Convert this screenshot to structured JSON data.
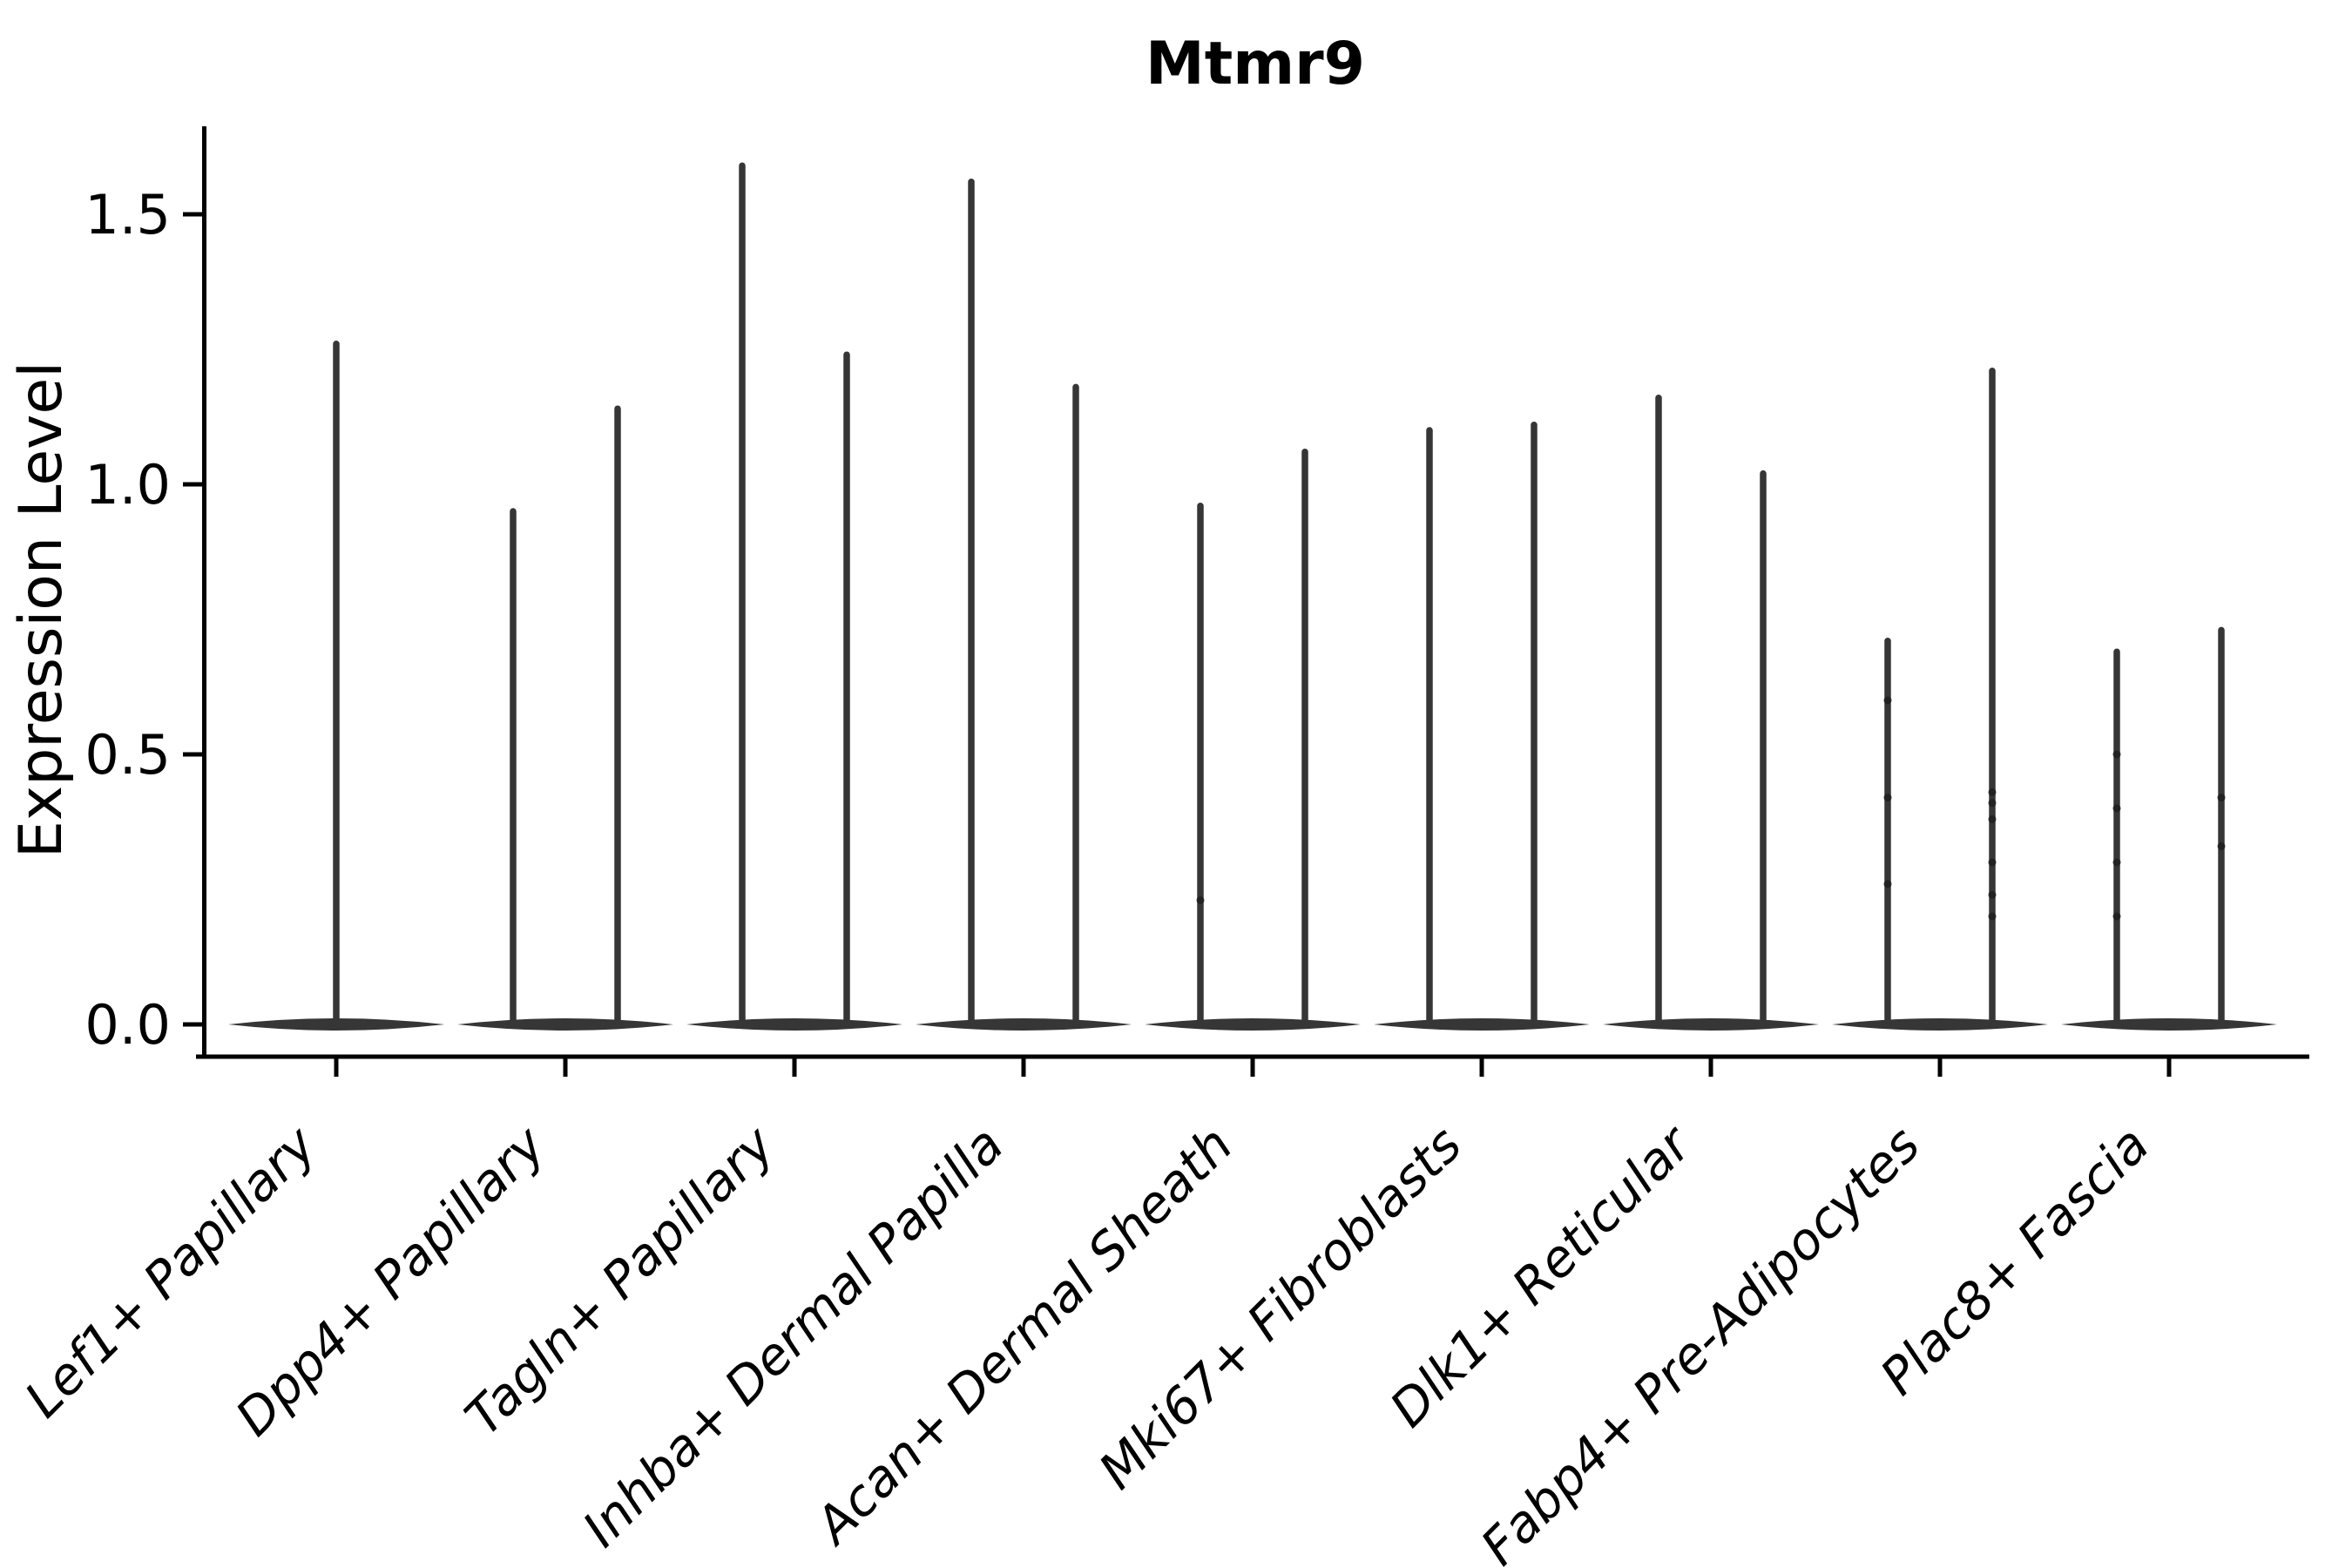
{
  "title": "Mtmr9",
  "axes": {
    "ylabel": "Expression Level",
    "yticklabels": [
      "0.0",
      "0.5",
      "1.0",
      "1.5"
    ]
  },
  "chart_data": {
    "type": "violin",
    "title": "Mtmr9",
    "xlabel": "",
    "ylabel": "Expression Level",
    "ylim": [
      -0.06,
      1.66
    ],
    "yticks": [
      0.0,
      0.5,
      1.0,
      1.5
    ],
    "yticklabels": [
      "0.0",
      "0.5",
      "1.0",
      "1.5"
    ],
    "grid": false,
    "legend": "none",
    "violin_color": "#363636",
    "categories": [
      "Lef1+ Papillary",
      "Dpp4+ Papillary",
      "Tagln+ Papillary",
      "Inhba+ Dermal Papilla",
      "Acan+ Dermal Sheath",
      "Mki67+ Fibroblasts",
      "Dlk1+ Reticular",
      "Fabp4+ Pre-Adipocytes",
      "Plac8+ Fascia"
    ],
    "description": "Each category shows a flat violin body at expression 0 with thin density spikes reaching the maximum expression values listed below.",
    "violins": [
      {
        "category": "Lef1+ Papillary",
        "body_center": 0.0,
        "spikes": [
          {
            "side": "center",
            "max": 1.26,
            "points": []
          }
        ]
      },
      {
        "category": "Dpp4+ Papillary",
        "body_center": 0.0,
        "spikes": [
          {
            "side": "left",
            "max": 0.95,
            "points": []
          },
          {
            "side": "right",
            "max": 1.14,
            "points": []
          }
        ]
      },
      {
        "category": "Tagln+ Papillary",
        "body_center": 0.0,
        "spikes": [
          {
            "side": "left",
            "max": 1.59,
            "points": []
          },
          {
            "side": "right",
            "max": 1.24,
            "points": []
          }
        ]
      },
      {
        "category": "Inhba+ Dermal Papilla",
        "body_center": 0.0,
        "spikes": [
          {
            "side": "left",
            "max": 1.56,
            "points": []
          },
          {
            "side": "right",
            "max": 1.18,
            "points": []
          }
        ]
      },
      {
        "category": "Acan+ Dermal Sheath",
        "body_center": 0.0,
        "spikes": [
          {
            "side": "left",
            "max": 0.96,
            "points": [
              0.23
            ]
          },
          {
            "side": "right",
            "max": 1.06,
            "points": []
          }
        ]
      },
      {
        "category": "Mki67+ Fibroblasts",
        "body_center": 0.0,
        "spikes": [
          {
            "side": "left",
            "max": 1.1,
            "points": []
          },
          {
            "side": "right",
            "max": 1.11,
            "points": []
          }
        ]
      },
      {
        "category": "Dlk1+ Reticular",
        "body_center": 0.0,
        "spikes": [
          {
            "side": "left",
            "max": 1.16,
            "points": []
          },
          {
            "side": "right",
            "max": 1.02,
            "points": []
          }
        ]
      },
      {
        "category": "Fabp4+ Pre-Adipocytes",
        "body_center": 0.0,
        "spikes": [
          {
            "side": "left",
            "max": 0.71,
            "points": [
              0.26,
              0.42,
              0.6
            ]
          },
          {
            "side": "right",
            "max": 1.21,
            "points": [
              0.2,
              0.24,
              0.3,
              0.38,
              0.41,
              0.43
            ]
          }
        ]
      },
      {
        "category": "Plac8+ Fascia",
        "body_center": 0.0,
        "spikes": [
          {
            "side": "left",
            "max": 0.69,
            "points": [
              0.2,
              0.3,
              0.4,
              0.5
            ]
          },
          {
            "side": "right",
            "max": 0.73,
            "points": [
              0.33,
              0.42
            ]
          }
        ]
      }
    ]
  }
}
